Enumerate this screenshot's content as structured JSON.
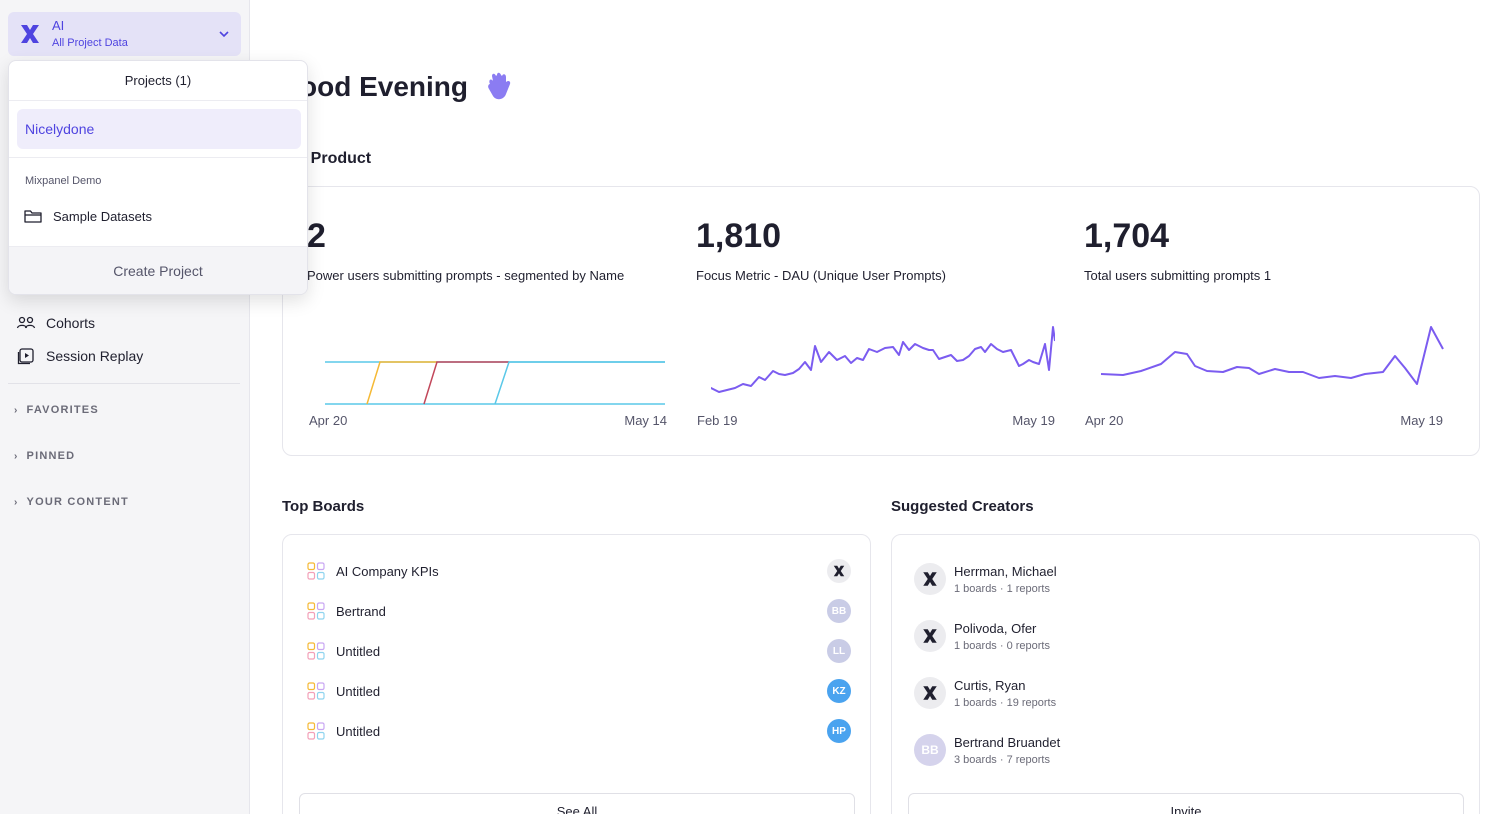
{
  "sidebar": {
    "project_name": "AI",
    "project_scope": "All Project Data",
    "nav": [
      {
        "label": "Cohorts",
        "icon": "cohorts-icon"
      },
      {
        "label": "Session Replay",
        "icon": "session-replay-icon"
      }
    ],
    "sections": [
      "FAVORITES",
      "PINNED",
      "YOUR CONTENT"
    ]
  },
  "dropdown": {
    "header": "Projects (1)",
    "selected_project": "Nicelydone",
    "group_label": "Mixpanel Demo",
    "group_item": "Sample Datasets",
    "footer": "Create Project"
  },
  "main": {
    "greeting": "ood Evening",
    "subtitle": "r Product",
    "metrics": [
      {
        "value": "2",
        "label": "Power users submitting prompts - segmented by Name",
        "x_start": "Apr 20",
        "x_end": "May 14"
      },
      {
        "value": "1,810",
        "label": "Focus Metric - DAU (Unique User Prompts)",
        "x_start": "Feb 19",
        "x_end": "May 19"
      },
      {
        "value": "1,704",
        "label": "Total users submitting prompts 1",
        "x_start": "Apr 20",
        "x_end": "May 19"
      }
    ],
    "top_boards": {
      "title": "Top Boards",
      "rows": [
        {
          "name": "AI Company KPIs",
          "owner": "",
          "color": "#ececef"
        },
        {
          "name": "Bertrand",
          "owner": "BB",
          "color": "#c9cce6"
        },
        {
          "name": "Untitled",
          "owner": "LL",
          "color": "#c9cce6"
        },
        {
          "name": "Untitled",
          "owner": "KZ",
          "color": "#4aa3ef"
        },
        {
          "name": "Untitled",
          "owner": "HP",
          "color": "#4aa3ef"
        }
      ],
      "button": "See All"
    },
    "suggested_creators": {
      "title": "Suggested Creators",
      "people": [
        {
          "name": "Herrman, Michael",
          "meta": "1 boards · 1 reports",
          "initials": ""
        },
        {
          "name": "Polivoda, Ofer",
          "meta": "1 boards · 0 reports",
          "initials": ""
        },
        {
          "name": "Curtis, Ryan",
          "meta": "1 boards · 19 reports",
          "initials": ""
        },
        {
          "name": "Bertrand Bruandet",
          "meta": "3 boards · 7 reports",
          "initials": "BB"
        }
      ],
      "button": "Invite"
    }
  },
  "colors": {
    "accent": "#4f44e0",
    "chart_line": "#7b5cf0",
    "series_cyan": "#5ac8e8",
    "series_yellow": "#f5b935",
    "series_red": "#c2475a"
  }
}
